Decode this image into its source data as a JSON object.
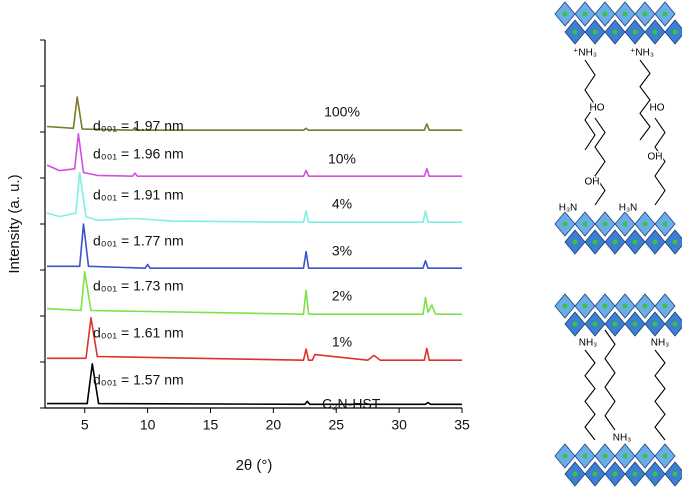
{
  "chart_data": {
    "type": "line",
    "x_label": "2θ (°)",
    "y_label": "Intensity (a. u.)",
    "xlim": [
      2,
      35
    ],
    "xticks": [
      5,
      10,
      15,
      20,
      25,
      30,
      35
    ],
    "ylim": [
      0,
      10
    ],
    "yticks": [
      0,
      1.25,
      2.5,
      3.75,
      5,
      6.25,
      7.5,
      8.75,
      10
    ],
    "series": [
      {
        "name": "C₂N-HST",
        "d_label": "d₀₀₁ = 1.57 nm",
        "color": "#000000",
        "x": [
          2,
          5.2,
          5.6,
          6.1,
          22.5,
          22.7,
          22.9,
          32.1,
          32.3,
          32.5,
          35
        ],
        "values": [
          0.12,
          0.12,
          1.2,
          0.12,
          0.1,
          0.18,
          0.1,
          0.1,
          0.15,
          0.1,
          0.1
        ]
      },
      {
        "name": "1%",
        "d_label": "d₀₀₁ = 1.61 nm",
        "color": "#e0302a",
        "x": [
          2,
          5.1,
          5.5,
          6.0,
          22.4,
          22.6,
          22.8,
          23.1,
          23.3,
          27.5,
          28,
          28.5,
          32,
          32.2,
          32.4,
          35
        ],
        "values": [
          1.35,
          1.35,
          2.45,
          1.4,
          1.3,
          1.6,
          1.3,
          1.3,
          1.45,
          1.3,
          1.43,
          1.3,
          1.3,
          1.62,
          1.3,
          1.3
        ]
      },
      {
        "name": "2%",
        "d_label": "d₀₀₁ = 1.73 nm",
        "color": "#7ee04a",
        "x": [
          2,
          4.7,
          5.0,
          5.5,
          22.4,
          22.6,
          22.8,
          31.9,
          32.1,
          32.3,
          32.6,
          32.9,
          35
        ],
        "values": [
          2.7,
          2.65,
          3.7,
          2.65,
          2.55,
          3.2,
          2.55,
          2.55,
          3.0,
          2.6,
          2.8,
          2.55,
          2.55
        ]
      },
      {
        "name": "3%",
        "d_label": "d₀₀₁ = 1.77 nm",
        "color": "#3a55c8",
        "x": [
          2,
          4.6,
          4.9,
          5.3,
          9.8,
          10,
          10.2,
          22.4,
          22.6,
          22.8,
          31.9,
          32.1,
          32.3,
          35
        ],
        "values": [
          3.85,
          3.85,
          5.0,
          3.85,
          3.8,
          3.9,
          3.8,
          3.8,
          4.25,
          3.8,
          3.8,
          4.0,
          3.8,
          3.8
        ]
      },
      {
        "name": "4%",
        "d_label": "d₀₀₁ = 1.91 nm",
        "color": "#7ff0e0",
        "x": [
          2,
          3,
          4.3,
          4.6,
          5.1,
          6,
          9,
          12,
          22.4,
          22.6,
          22.8,
          31.9,
          32.1,
          32.3,
          35
        ],
        "values": [
          5.3,
          5.2,
          5.3,
          6.4,
          5.2,
          5.1,
          5.15,
          5.08,
          5.05,
          5.35,
          5.05,
          5.05,
          5.35,
          5.05,
          5.05
        ]
      },
      {
        "name": "10%",
        "d_label": "d₀₀₁ = 1.96 nm",
        "color": "#d050e0",
        "x": [
          2,
          3,
          4.2,
          4.5,
          4.9,
          6,
          8.8,
          9,
          9.2,
          22.4,
          22.6,
          22.8,
          32,
          32.2,
          32.4,
          35
        ],
        "values": [
          6.6,
          6.45,
          6.5,
          7.45,
          6.4,
          6.32,
          6.3,
          6.38,
          6.3,
          6.3,
          6.45,
          6.3,
          6.3,
          6.5,
          6.3,
          6.3
        ]
      },
      {
        "name": "100%",
        "d_label": "d₀₀₁ = 1.97 nm",
        "color": "#7a7a2a",
        "x": [
          2,
          4.1,
          4.4,
          4.8,
          8.8,
          9,
          9.2,
          22.4,
          22.6,
          22.8,
          32,
          32.2,
          32.4,
          35
        ],
        "values": [
          7.65,
          7.6,
          8.45,
          7.58,
          7.55,
          7.62,
          7.55,
          7.55,
          7.6,
          7.55,
          7.55,
          7.72,
          7.55,
          7.55
        ]
      }
    ]
  },
  "diagram": {
    "labels": [
      "⁺NH₃",
      "⁺NH₃",
      "HO",
      "HO",
      "OH",
      "OH",
      "H₃N",
      "H₃N",
      "NH₃",
      "NH₃",
      "NH₃"
    ]
  }
}
